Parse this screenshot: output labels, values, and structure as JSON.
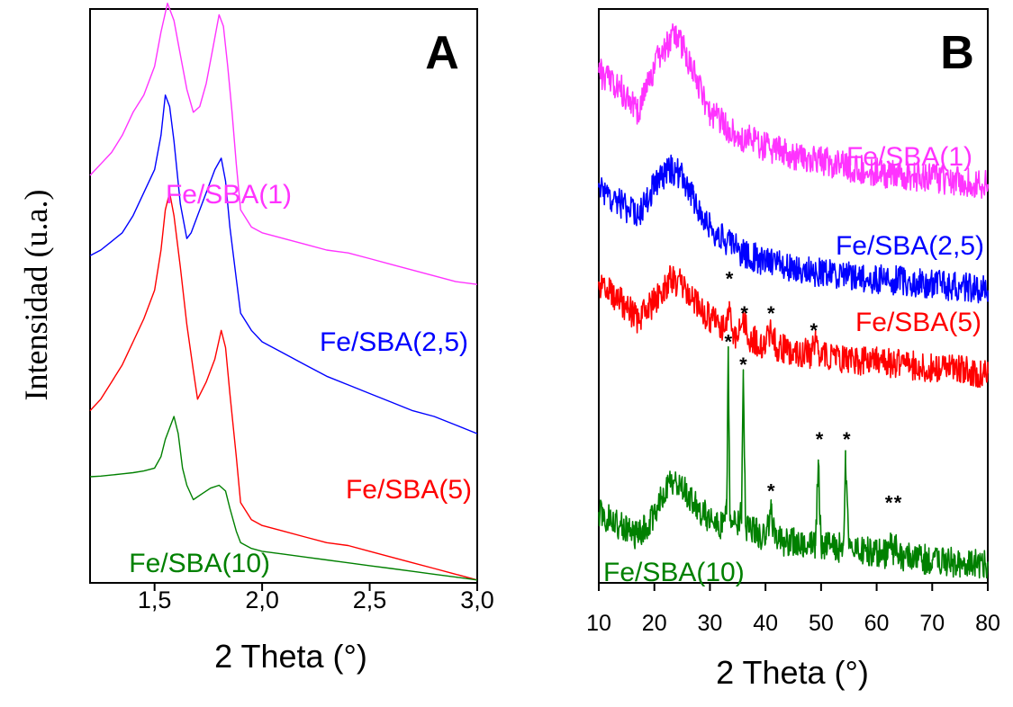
{
  "chart_data": [
    {
      "type": "line",
      "panel_label": "A",
      "xlabel": "2 Theta (°)",
      "ylabel": "Intensidad (u.a.)",
      "xlim": [
        1.2,
        3.0
      ],
      "xticks": [
        1.5,
        2.0,
        2.5,
        3.0
      ],
      "xtick_labels": [
        "1,5",
        "2,0",
        "2,5",
        "3,0"
      ],
      "ylim": [
        0,
        100
      ],
      "grid": false,
      "series": [
        {
          "name": "Fe/SBA(1)",
          "color": "#ff33ff",
          "x": [
            1.2,
            1.25,
            1.3,
            1.35,
            1.4,
            1.45,
            1.5,
            1.53,
            1.56,
            1.59,
            1.62,
            1.65,
            1.68,
            1.71,
            1.74,
            1.77,
            1.8,
            1.82,
            1.84,
            1.86,
            1.88,
            1.9,
            1.95,
            2.0,
            2.1,
            2.2,
            2.3,
            2.4,
            2.5,
            2.6,
            2.7,
            2.8,
            2.9,
            3.0
          ],
          "y": [
            71,
            73,
            75,
            78,
            82,
            85,
            90,
            96,
            101,
            98,
            92,
            86,
            82,
            83,
            87,
            93,
            99,
            97,
            90,
            82,
            73,
            65,
            62,
            61,
            60,
            59,
            58,
            57.5,
            56.5,
            55.5,
            54.5,
            53.5,
            52.5,
            52
          ]
        },
        {
          "name": "Fe/SBA(2,5)",
          "color": "#0000ff",
          "x": [
            1.2,
            1.25,
            1.3,
            1.35,
            1.4,
            1.45,
            1.5,
            1.53,
            1.55,
            1.57,
            1.59,
            1.62,
            1.65,
            1.67,
            1.7,
            1.74,
            1.78,
            1.81,
            1.83,
            1.85,
            1.88,
            1.9,
            1.95,
            2.0,
            2.1,
            2.2,
            2.3,
            2.4,
            2.5,
            2.6,
            2.7,
            2.8,
            2.9,
            3.0
          ],
          "y": [
            57,
            58,
            59.5,
            61,
            64,
            68,
            72,
            78,
            85,
            83,
            77,
            66,
            60,
            61,
            64,
            68,
            72,
            74,
            70,
            62,
            53,
            47,
            44,
            42,
            40,
            38,
            36,
            34.5,
            33,
            31.5,
            30,
            29,
            27.5,
            26
          ]
        },
        {
          "name": "Fe/SBA(5)",
          "color": "#ff0000",
          "x": [
            1.2,
            1.25,
            1.3,
            1.35,
            1.4,
            1.45,
            1.5,
            1.53,
            1.55,
            1.57,
            1.59,
            1.62,
            1.65,
            1.68,
            1.7,
            1.74,
            1.78,
            1.81,
            1.83,
            1.85,
            1.88,
            1.9,
            1.95,
            2.0,
            2.1,
            2.2,
            2.3,
            2.4,
            2.5,
            2.6,
            2.7,
            2.8,
            2.9,
            3.0
          ],
          "y": [
            30,
            32,
            35,
            38,
            42,
            46,
            51,
            58,
            65,
            68,
            64,
            55,
            45,
            37,
            32,
            35,
            39,
            44,
            41,
            33,
            22,
            14,
            11,
            10,
            9,
            8,
            7,
            6.5,
            5.5,
            4.5,
            3.5,
            2.5,
            1.5,
            0.5
          ]
        },
        {
          "name": "Fe/SBA(10)",
          "color": "#008000",
          "x": [
            1.2,
            1.25,
            1.3,
            1.35,
            1.4,
            1.45,
            1.5,
            1.53,
            1.55,
            1.57,
            1.59,
            1.61,
            1.63,
            1.65,
            1.68,
            1.72,
            1.76,
            1.8,
            1.83,
            1.85,
            1.88,
            1.9,
            1.95,
            2.0,
            2.1,
            2.2,
            2.3,
            2.4,
            2.5,
            2.6,
            2.7,
            2.8,
            2.9,
            3.0
          ],
          "y": [
            18.5,
            18.6,
            18.8,
            19,
            19.2,
            19.5,
            20,
            22,
            25,
            27,
            29,
            26,
            20,
            17,
            14.5,
            15.5,
            16.5,
            17,
            16,
            13,
            9,
            7,
            6,
            5.5,
            5,
            4.5,
            4,
            3.5,
            3,
            2.5,
            2,
            1.5,
            1,
            0.5
          ]
        }
      ]
    },
    {
      "type": "line",
      "panel_label": "B",
      "xlabel": "2 Theta (°)",
      "xlim": [
        10,
        80
      ],
      "xticks": [
        10,
        20,
        30,
        40,
        50,
        60,
        70,
        80
      ],
      "xtick_labels": [
        "10",
        "20",
        "30",
        "40",
        "50",
        "60",
        "70",
        "80"
      ],
      "ylim": [
        0,
        100
      ],
      "grid": false,
      "series": [
        {
          "name": "Fe/SBA(1)",
          "color": "#ff33ff",
          "x": [
            10,
            14,
            17,
            20,
            23,
            25,
            27,
            30,
            35,
            40,
            45,
            50,
            55,
            60,
            65,
            70,
            75,
            80
          ],
          "y": [
            89,
            86,
            82,
            90,
            95,
            94,
            89,
            82,
            78,
            76,
            74.5,
            73.5,
            72.5,
            71.5,
            71,
            70.5,
            70,
            69.5
          ]
        },
        {
          "name": "Fe/SBA(2,5)",
          "color": "#0000ff",
          "x": [
            10,
            14,
            17,
            20,
            23,
            25,
            27,
            30,
            35,
            40,
            45,
            50,
            55,
            60,
            65,
            70,
            75,
            80
          ],
          "y": [
            69,
            66,
            64,
            69,
            72,
            71,
            67,
            62,
            58,
            56,
            55,
            54,
            53.5,
            53,
            52.5,
            52,
            51.5,
            51
          ]
        },
        {
          "name": "Fe/SBA(5)",
          "color": "#ff0000",
          "x": [
            10,
            14,
            17,
            20,
            23,
            25,
            27,
            30,
            33,
            33.5,
            34,
            35,
            36,
            37,
            40,
            41,
            42,
            45,
            48,
            49,
            50,
            55,
            60,
            65,
            70,
            75,
            80
          ],
          "y": [
            52,
            49,
            46,
            49,
            53,
            52,
            49,
            46,
            44,
            49,
            44,
            43,
            46,
            42.5,
            41.5,
            44,
            41,
            40.5,
            40,
            42,
            39.5,
            39,
            38.5,
            38,
            37.5,
            37,
            36.5
          ]
        },
        {
          "name": "Fe/SBA(10)",
          "color": "#008000",
          "x": [
            10,
            14,
            17,
            20,
            23,
            25,
            27,
            30,
            32,
            33,
            33.3,
            33.6,
            35,
            35.7,
            36,
            36.4,
            38,
            40,
            41,
            42,
            45,
            49,
            49.5,
            50,
            53,
            54,
            54.4,
            55,
            58,
            62,
            62.5,
            63,
            63.5,
            64,
            65,
            70,
            75,
            80
          ],
          "y": [
            12,
            10,
            8,
            12,
            18,
            17,
            14,
            11,
            10,
            12,
            40,
            12,
            10,
            12,
            36,
            10,
            9,
            8,
            12,
            7.5,
            7,
            6.5,
            21,
            6.5,
            6,
            6.5,
            21,
            6,
            5.5,
            5,
            8,
            5,
            8,
            5,
            4.5,
            4,
            3.5,
            3
          ]
        }
      ],
      "annotations": [
        {
          "text": "*",
          "x": 33.5,
          "y": 54
        },
        {
          "text": "*",
          "x": 36.2,
          "y": 48
        },
        {
          "text": "*",
          "x": 41,
          "y": 48
        },
        {
          "text": "*",
          "x": 48.7,
          "y": 45
        },
        {
          "text": "*",
          "x": 33.3,
          "y": 43
        },
        {
          "text": "*",
          "x": 36,
          "y": 39
        },
        {
          "text": "*",
          "x": 41,
          "y": 17
        },
        {
          "text": "*",
          "x": 49.7,
          "y": 26
        },
        {
          "text": "*",
          "x": 54.6,
          "y": 26
        },
        {
          "text": "*",
          "x": 62.2,
          "y": 15
        },
        {
          "text": "*",
          "x": 63.8,
          "y": 15
        }
      ]
    }
  ]
}
